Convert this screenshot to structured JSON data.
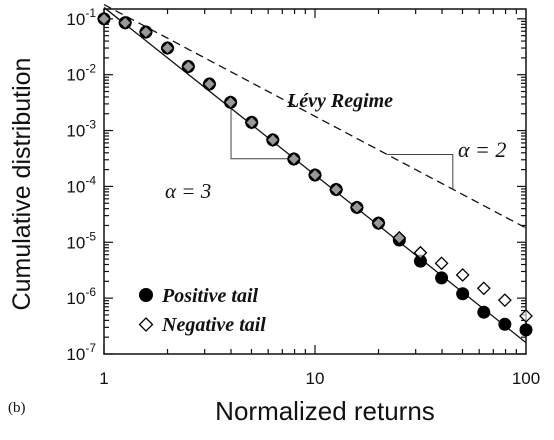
{
  "panel_label": "(b)",
  "chart_data": {
    "type": "scatter",
    "xlabel": "Normalized returns",
    "ylabel": "Cumulative distribution",
    "xscale": "log",
    "yscale": "log",
    "xlim": [
      1,
      100
    ],
    "ylim": [
      1e-07,
      0.15
    ],
    "x_ticks": [
      {
        "value": 1,
        "label": "1"
      },
      {
        "value": 10,
        "label": "10"
      },
      {
        "value": 100,
        "label": "100"
      }
    ],
    "y_ticks": [
      {
        "value": 0.1,
        "base": "10",
        "exp": "-1"
      },
      {
        "value": 0.01,
        "base": "10",
        "exp": "-2"
      },
      {
        "value": 0.001,
        "base": "10",
        "exp": "-3"
      },
      {
        "value": 0.0001,
        "base": "10",
        "exp": "-4"
      },
      {
        "value": 1e-05,
        "base": "10",
        "exp": "-5"
      },
      {
        "value": 1e-06,
        "base": "10",
        "exp": "-6"
      },
      {
        "value": 1e-07,
        "base": "10",
        "exp": "-7"
      }
    ],
    "series": [
      {
        "name": "Positive tail",
        "marker": "filled-circle",
        "color": "#000000",
        "x": [
          1,
          1.26,
          1.58,
          2,
          2.51,
          3.16,
          3.98,
          5.01,
          6.31,
          7.94,
          10,
          12.6,
          15.8,
          20,
          25.1,
          31.6,
          39.8,
          50.1,
          63.1,
          79.4,
          100
        ],
        "y": [
          0.1,
          0.085,
          0.058,
          0.03,
          0.014,
          0.0068,
          0.0032,
          0.0014,
          0.00068,
          0.00031,
          0.00016,
          8.8e-05,
          4.2e-05,
          2.2e-05,
          1.1e-05,
          4.6e-06,
          2.3e-06,
          1.2e-06,
          5.6e-07,
          3.4e-07,
          2.7e-07
        ]
      },
      {
        "name": "Negative tail",
        "marker": "open-diamond",
        "color": "#000000",
        "x": [
          1,
          1.26,
          1.58,
          2,
          2.51,
          3.16,
          3.98,
          5.01,
          6.31,
          7.94,
          10,
          12.6,
          15.8,
          20,
          25.1,
          31.6,
          39.8,
          50.1,
          63.1,
          79.4,
          100
        ],
        "y": [
          0.1,
          0.085,
          0.058,
          0.03,
          0.014,
          0.0068,
          0.0032,
          0.0014,
          0.00068,
          0.00031,
          0.00016,
          8.8e-05,
          4.2e-05,
          2.2e-05,
          1.2e-05,
          6.5e-06,
          4.2e-06,
          2.6e-06,
          1.5e-06,
          9.2e-07,
          4.8e-07
        ]
      }
    ],
    "lines": [
      {
        "name": "power-law-fit",
        "style": "solid",
        "x": [
          1,
          100
        ],
        "y": [
          0.16,
          1.6e-07
        ]
      },
      {
        "name": "levy-reference",
        "style": "dashed",
        "x": [
          1,
          100
        ],
        "y": [
          0.18,
          1.8e-05
        ]
      }
    ],
    "annotations": [
      {
        "id": "levy",
        "text": "Lévy Regime"
      },
      {
        "id": "alpha2",
        "text": "α = 2"
      },
      {
        "id": "alpha3",
        "text": "α = 3"
      }
    ],
    "legend": {
      "placement": "bottom-left",
      "entries": [
        {
          "label": "Positive tail",
          "marker": "filled-circle"
        },
        {
          "label": "Negative tail",
          "marker": "open-diamond"
        }
      ]
    },
    "grid": false
  }
}
